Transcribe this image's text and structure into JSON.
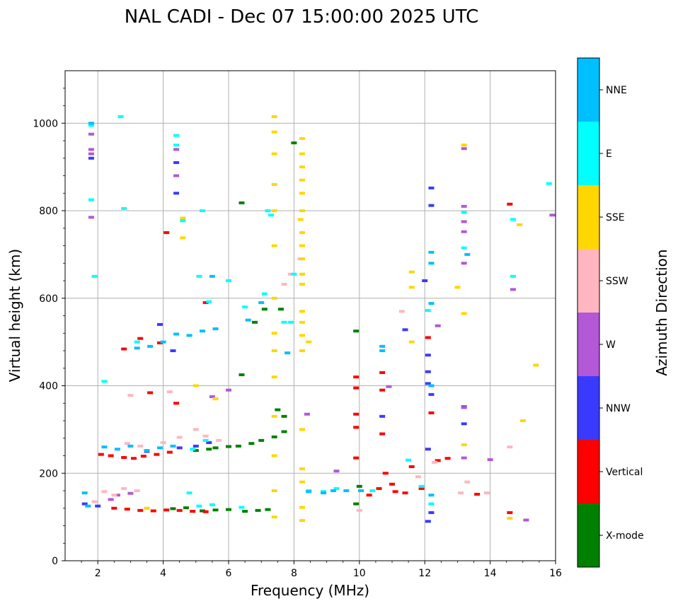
{
  "chart_data": {
    "type": "scatter",
    "title": "NAL CADI - Dec 07 15:00:00 2025 UTC",
    "xlabel": "Frequency (MHz)",
    "ylabel": "Virtual height (km)",
    "xlim": [
      1,
      16
    ],
    "ylim": [
      0,
      1120
    ],
    "x_ticks": [
      2,
      4,
      6,
      8,
      10,
      12,
      14,
      16
    ],
    "x_tick_labels": [
      "2",
      "4",
      "6",
      "8",
      "10",
      "12",
      "14",
      "16"
    ],
    "y_ticks": [
      0,
      200,
      400,
      600,
      800,
      1000
    ],
    "y_tick_labels": [
      "0",
      "200",
      "400",
      "600",
      "800",
      "1000"
    ],
    "grid": true,
    "colorbar": {
      "label": "Azimuth Direction",
      "categories": [
        "X-mode",
        "Vertical",
        "NNW",
        "W",
        "SSW",
        "SSE",
        "E",
        "NNE"
      ],
      "colors": [
        "#008000",
        "#ff0000",
        "#3a3aff",
        "#b358d6",
        "#ffb6c1",
        "#ffd700",
        "#00ffff",
        "#00bfff"
      ]
    },
    "series": [
      {
        "name": "X-mode",
        "points": [
          [
            5.2,
            114
          ],
          [
            5.6,
            116
          ],
          [
            6.0,
            117
          ],
          [
            6.5,
            113
          ],
          [
            6.9,
            115
          ],
          [
            7.2,
            117
          ],
          [
            5.6,
            258
          ],
          [
            6.0,
            261
          ],
          [
            6.3,
            262
          ],
          [
            6.7,
            268
          ],
          [
            7.0,
            275
          ],
          [
            7.4,
            283
          ],
          [
            7.7,
            295
          ],
          [
            5.0,
            252
          ],
          [
            5.4,
            255
          ],
          [
            6.4,
            425
          ],
          [
            6.8,
            545
          ],
          [
            7.1,
            575
          ],
          [
            7.6,
            575
          ],
          [
            6.4,
            818
          ],
          [
            8.0,
            955
          ],
          [
            9.9,
            525
          ],
          [
            9.9,
            130
          ],
          [
            10.0,
            170
          ],
          [
            4.3,
            119
          ],
          [
            4.7,
            121
          ],
          [
            7.5,
            345
          ],
          [
            7.7,
            330
          ]
        ]
      },
      {
        "name": "Vertical",
        "points": [
          [
            2.1,
            243
          ],
          [
            2.4,
            240
          ],
          [
            2.8,
            236
          ],
          [
            3.1,
            234
          ],
          [
            3.4,
            239
          ],
          [
            3.8,
            243
          ],
          [
            4.2,
            248
          ],
          [
            2.5,
            120
          ],
          [
            2.9,
            118
          ],
          [
            3.3,
            115
          ],
          [
            3.7,
            114
          ],
          [
            4.1,
            116
          ],
          [
            4.5,
            115
          ],
          [
            4.9,
            113
          ],
          [
            5.3,
            112
          ],
          [
            2.8,
            484
          ],
          [
            3.3,
            508
          ],
          [
            3.9,
            498
          ],
          [
            4.1,
            750
          ],
          [
            5.3,
            590
          ],
          [
            9.9,
            420
          ],
          [
            9.9,
            395
          ],
          [
            9.9,
            335
          ],
          [
            9.9,
            305
          ],
          [
            9.9,
            235
          ],
          [
            10.7,
            430
          ],
          [
            10.7,
            390
          ],
          [
            10.7,
            290
          ],
          [
            10.8,
            200
          ],
          [
            11.0,
            175
          ],
          [
            10.6,
            165
          ],
          [
            11.1,
            158
          ],
          [
            11.4,
            155
          ],
          [
            11.9,
            165
          ],
          [
            12.4,
            229
          ],
          [
            12.7,
            234
          ],
          [
            12.1,
            510
          ],
          [
            12.2,
            338
          ],
          [
            14.6,
            815
          ],
          [
            14.6,
            110
          ],
          [
            13.6,
            152
          ],
          [
            11.6,
            215
          ],
          [
            10.3,
            150
          ],
          [
            3.6,
            384
          ],
          [
            4.4,
            360
          ]
        ]
      },
      {
        "name": "NNW",
        "points": [
          [
            1.6,
            130
          ],
          [
            2.0,
            125
          ],
          [
            3.5,
            250
          ],
          [
            4.5,
            258
          ],
          [
            5.0,
            262
          ],
          [
            5.4,
            270
          ],
          [
            4.4,
            840
          ],
          [
            4.4,
            910
          ],
          [
            4.3,
            480
          ],
          [
            12.1,
            470
          ],
          [
            12.1,
            432
          ],
          [
            12.1,
            405
          ],
          [
            12.2,
            380
          ],
          [
            12.1,
            255
          ],
          [
            12.2,
            110
          ],
          [
            12.1,
            90
          ],
          [
            12.2,
            852
          ],
          [
            13.2,
            313
          ],
          [
            13.2,
            352
          ],
          [
            12.2,
            812
          ],
          [
            12.0,
            640
          ],
          [
            10.7,
            330
          ],
          [
            11.4,
            528
          ],
          [
            1.8,
            920
          ],
          [
            3.9,
            540
          ]
        ]
      },
      {
        "name": "W",
        "points": [
          [
            1.8,
            940
          ],
          [
            1.8,
            975
          ],
          [
            1.8,
            930
          ],
          [
            1.8,
            785
          ],
          [
            2.4,
            140
          ],
          [
            2.6,
            150
          ],
          [
            3.0,
            154
          ],
          [
            4.4,
            880
          ],
          [
            4.4,
            940
          ],
          [
            5.5,
            375
          ],
          [
            6.0,
            390
          ],
          [
            8.4,
            335
          ],
          [
            13.2,
            810
          ],
          [
            13.2,
            775
          ],
          [
            13.2,
            752
          ],
          [
            13.2,
            942
          ],
          [
            13.2,
            680
          ],
          [
            13.2,
            235
          ],
          [
            13.2,
            350
          ],
          [
            14.0,
            231
          ],
          [
            14.7,
            620
          ],
          [
            15.1,
            93
          ],
          [
            15.9,
            790
          ],
          [
            12.4,
            537
          ],
          [
            9.3,
            205
          ],
          [
            10.9,
            398
          ]
        ]
      },
      {
        "name": "SSW",
        "points": [
          [
            1.9,
            135
          ],
          [
            2.2,
            158
          ],
          [
            2.5,
            150
          ],
          [
            2.8,
            165
          ],
          [
            3.2,
            160
          ],
          [
            3.5,
            120
          ],
          [
            2.9,
            268
          ],
          [
            3.3,
            262
          ],
          [
            4.0,
            270
          ],
          [
            4.5,
            282
          ],
          [
            5.0,
            300
          ],
          [
            5.3,
            285
          ],
          [
            5.7,
            275
          ],
          [
            3.0,
            378
          ],
          [
            4.2,
            386
          ],
          [
            7.7,
            632
          ],
          [
            7.9,
            655
          ],
          [
            8.2,
            690
          ],
          [
            10.0,
            115
          ],
          [
            11.3,
            570
          ],
          [
            12.3,
            225
          ],
          [
            13.1,
            155
          ],
          [
            13.3,
            180
          ],
          [
            14.6,
            260
          ],
          [
            13.9,
            155
          ],
          [
            11.8,
            192
          ]
        ]
      },
      {
        "name": "SSE",
        "points": [
          [
            7.4,
            1015
          ],
          [
            7.4,
            980
          ],
          [
            7.4,
            930
          ],
          [
            7.4,
            860
          ],
          [
            7.4,
            800
          ],
          [
            7.4,
            720
          ],
          [
            7.4,
            600
          ],
          [
            7.4,
            520
          ],
          [
            7.4,
            480
          ],
          [
            7.4,
            420
          ],
          [
            7.4,
            330
          ],
          [
            7.4,
            240
          ],
          [
            7.4,
            160
          ],
          [
            7.4,
            100
          ],
          [
            8.25,
            965
          ],
          [
            8.25,
            930
          ],
          [
            8.25,
            900
          ],
          [
            8.25,
            870
          ],
          [
            8.25,
            840
          ],
          [
            8.25,
            800
          ],
          [
            8.25,
            750
          ],
          [
            8.25,
            720
          ],
          [
            8.25,
            690
          ],
          [
            8.25,
            655
          ],
          [
            8.25,
            632
          ],
          [
            8.25,
            570
          ],
          [
            8.25,
            545
          ],
          [
            8.25,
            515
          ],
          [
            8.25,
            480
          ],
          [
            8.25,
            300
          ],
          [
            8.25,
            210
          ],
          [
            8.25,
            180
          ],
          [
            8.25,
            122
          ],
          [
            8.25,
            92
          ],
          [
            8.45,
            500
          ],
          [
            8.2,
            780
          ],
          [
            11.6,
            625
          ],
          [
            11.6,
            500
          ],
          [
            11.6,
            660
          ],
          [
            13.2,
            950
          ],
          [
            13.2,
            565
          ],
          [
            13.2,
            265
          ],
          [
            13.0,
            625
          ],
          [
            15.0,
            320
          ],
          [
            15.4,
            447
          ],
          [
            14.9,
            768
          ],
          [
            14.6,
            97
          ],
          [
            3.5,
            120
          ],
          [
            4.6,
            783
          ],
          [
            4.6,
            738
          ],
          [
            5.0,
            400
          ],
          [
            5.6,
            370
          ]
        ]
      },
      {
        "name": "E",
        "points": [
          [
            1.8,
            995
          ],
          [
            1.8,
            825
          ],
          [
            2.7,
            1015
          ],
          [
            2.8,
            805
          ],
          [
            2.2,
            410
          ],
          [
            4.4,
            972
          ],
          [
            4.4,
            950
          ],
          [
            4.6,
            777
          ],
          [
            5.2,
            800
          ],
          [
            5.1,
            650
          ],
          [
            5.4,
            592
          ],
          [
            6.0,
            640
          ],
          [
            6.5,
            580
          ],
          [
            7.1,
            610
          ],
          [
            7.7,
            545
          ],
          [
            7.9,
            545
          ],
          [
            8.0,
            655
          ],
          [
            8.45,
            160
          ],
          [
            8.9,
            158
          ],
          [
            9.3,
            165
          ],
          [
            7.2,
            800
          ],
          [
            7.3,
            790
          ],
          [
            4.8,
            155
          ],
          [
            5.1,
            125
          ],
          [
            5.5,
            128
          ],
          [
            6.4,
            122
          ],
          [
            4.9,
            255
          ],
          [
            5.3,
            275
          ],
          [
            12.1,
            572
          ],
          [
            12.2,
            130
          ],
          [
            13.2,
            796
          ],
          [
            13.2,
            715
          ],
          [
            14.7,
            650
          ],
          [
            14.7,
            780
          ],
          [
            15.8,
            862
          ],
          [
            11.9,
            170
          ],
          [
            11.5,
            230
          ],
          [
            10.4,
            160
          ],
          [
            3.2,
            500
          ],
          [
            1.9,
            650
          ]
        ]
      },
      {
        "name": "NNE",
        "points": [
          [
            1.8,
            1000
          ],
          [
            1.6,
            155
          ],
          [
            1.7,
            125
          ],
          [
            2.2,
            260
          ],
          [
            2.6,
            255
          ],
          [
            3.0,
            262
          ],
          [
            3.5,
            252
          ],
          [
            3.9,
            258
          ],
          [
            4.3,
            262
          ],
          [
            5.6,
            530
          ],
          [
            5.2,
            525
          ],
          [
            4.8,
            515
          ],
          [
            4.4,
            518
          ],
          [
            4.0,
            500
          ],
          [
            3.6,
            490
          ],
          [
            3.2,
            486
          ],
          [
            8.45,
            158
          ],
          [
            8.9,
            155
          ],
          [
            9.2,
            160
          ],
          [
            9.6,
            160
          ],
          [
            10.05,
            160
          ],
          [
            12.2,
            705
          ],
          [
            12.2,
            680
          ],
          [
            12.2,
            588
          ],
          [
            12.2,
            400
          ],
          [
            12.2,
            150
          ],
          [
            13.3,
            700
          ],
          [
            10.7,
            480
          ],
          [
            10.7,
            490
          ],
          [
            5.5,
            650
          ],
          [
            6.6,
            550
          ],
          [
            7.0,
            590
          ],
          [
            7.8,
            475
          ]
        ]
      }
    ]
  }
}
